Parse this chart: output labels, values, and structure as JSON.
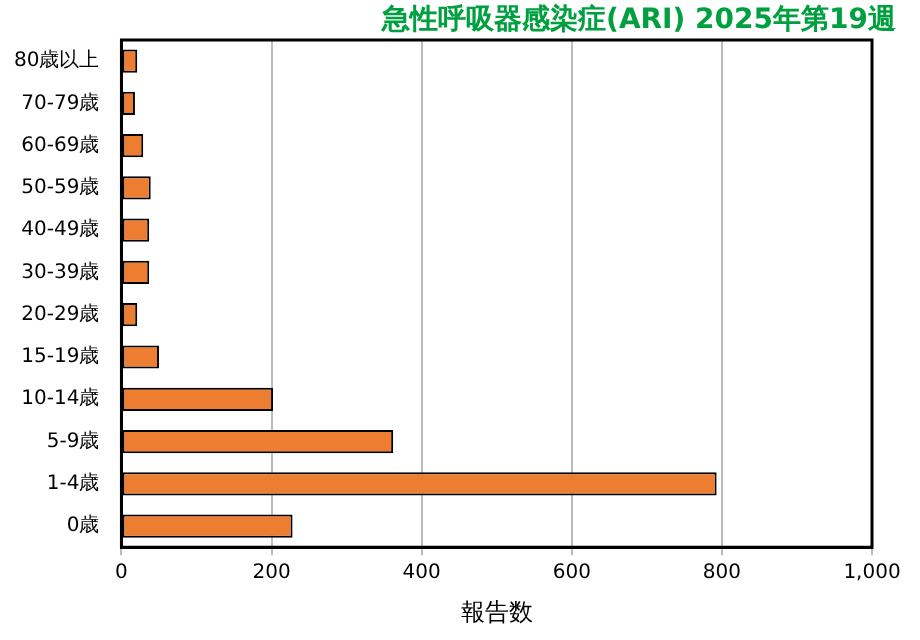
{
  "chart_data": {
    "type": "bar",
    "orientation": "horizontal",
    "title": "急性呼吸器感染症(ARI) 2025年第19週",
    "xlabel": "報告数",
    "categories": [
      "80歳以上",
      "70-79歳",
      "60-69歳",
      "50-59歳",
      "40-49歳",
      "30-39歳",
      "20-29歳",
      "15-19歳",
      "10-14歳",
      "5-9歳",
      "1-4歳",
      "0歳"
    ],
    "values": [
      21,
      18,
      29,
      39,
      37,
      37,
      21,
      50,
      202,
      362,
      793,
      228
    ],
    "color": "#ed7d31",
    "xlim": [
      0,
      1000
    ],
    "xticks": [
      0,
      200,
      400,
      600,
      800,
      {
        "value": 1000,
        "label": "1,000"
      }
    ],
    "grid": "x",
    "legend": false
  }
}
